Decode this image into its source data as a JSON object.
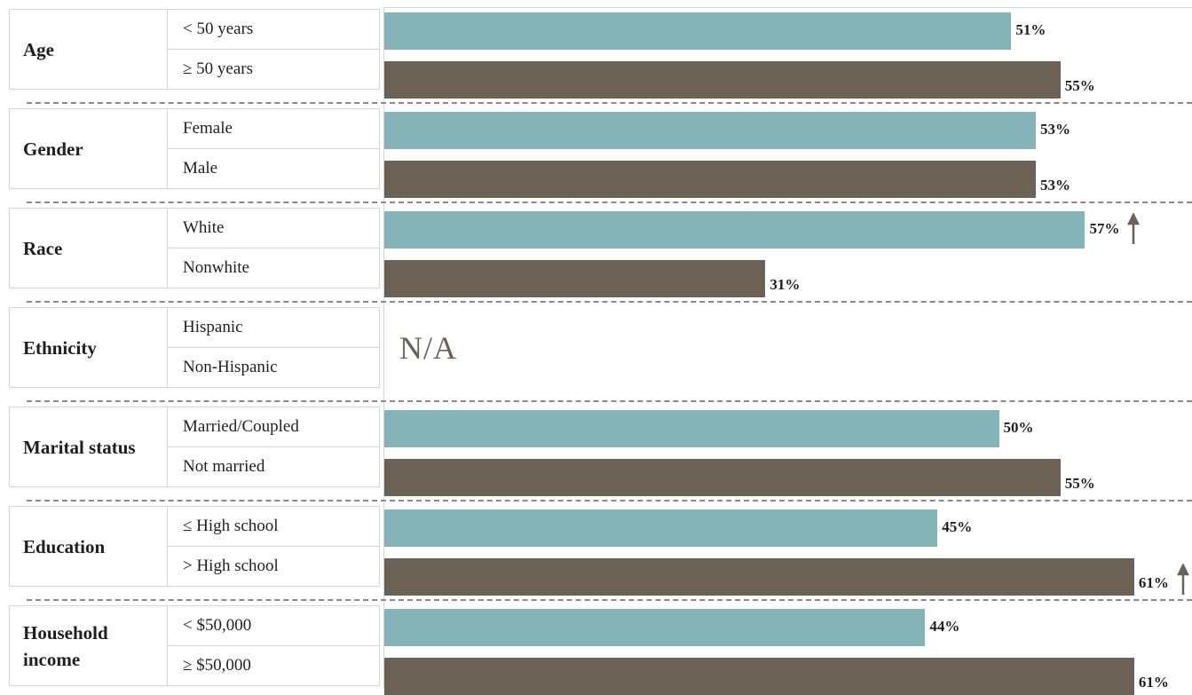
{
  "colors": {
    "teal": "#84b4b7",
    "brown": "#6b6155",
    "arrow": "#6b6155",
    "separator": "#8a8a8a",
    "border": "#d4d4d4"
  },
  "chart_data": {
    "type": "bar",
    "orientation": "horizontal",
    "xlim": [
      0,
      70
    ],
    "unit": "%",
    "groups": [
      {
        "name": "Age",
        "items": [
          {
            "label": "< 50 years",
            "value": 51,
            "display": "51%",
            "color": "teal",
            "arrow": false
          },
          {
            "label": "≥ 50 years",
            "value": 55,
            "display": "55%",
            "color": "brown",
            "arrow": false
          }
        ]
      },
      {
        "name": "Gender",
        "items": [
          {
            "label": "Female",
            "value": 53,
            "display": "53%",
            "color": "teal",
            "arrow": false
          },
          {
            "label": "Male",
            "value": 53,
            "display": "53%",
            "color": "brown",
            "arrow": false
          }
        ]
      },
      {
        "name": "Race",
        "items": [
          {
            "label": "White",
            "value": 57,
            "display": "57%",
            "color": "teal",
            "arrow": true
          },
          {
            "label": "Nonwhite",
            "value": 31,
            "display": "31%",
            "color": "brown",
            "arrow": false
          }
        ]
      },
      {
        "name": "Ethnicity",
        "na_text": "N/A",
        "items": [
          {
            "label": "Hispanic",
            "value": null,
            "display": "",
            "color": "teal",
            "arrow": false
          },
          {
            "label": "Non-Hispanic",
            "value": null,
            "display": "",
            "color": "brown",
            "arrow": false
          }
        ]
      },
      {
        "name": "Marital status",
        "items": [
          {
            "label": "Married/Coupled",
            "value": 50,
            "display": "50%",
            "color": "teal",
            "arrow": false
          },
          {
            "label": "Not married",
            "value": 55,
            "display": "55%",
            "color": "brown",
            "arrow": false
          }
        ]
      },
      {
        "name": "Education",
        "items": [
          {
            "label": "≤ High school",
            "value": 45,
            "display": "45%",
            "color": "teal",
            "arrow": false
          },
          {
            "label": "> High school",
            "value": 61,
            "display": "61%",
            "color": "brown",
            "arrow": true
          }
        ]
      },
      {
        "name": "Household income",
        "items": [
          {
            "label": "< $50,000",
            "value": 44,
            "display": "44%",
            "color": "teal",
            "arrow": false
          },
          {
            "label": "≥ $50,000",
            "value": 61,
            "display": "61%",
            "color": "brown",
            "arrow": false
          }
        ]
      }
    ]
  }
}
